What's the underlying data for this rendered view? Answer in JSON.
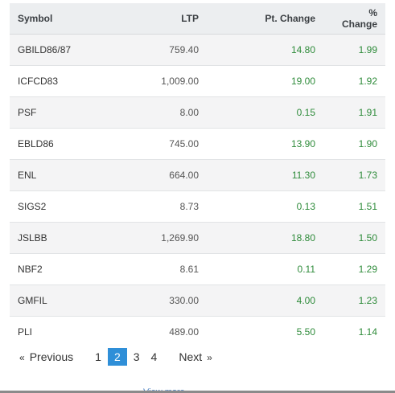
{
  "table": {
    "headers": {
      "symbol": "Symbol",
      "ltp": "LTP",
      "pt_change": "Pt. Change",
      "pct_change": "% Change"
    },
    "rows": [
      {
        "symbol": "GBILD86/87",
        "ltp": "759.40",
        "pt_change": "14.80",
        "pct_change": "1.99"
      },
      {
        "symbol": "ICFCD83",
        "ltp": "1,009.00",
        "pt_change": "19.00",
        "pct_change": "1.92"
      },
      {
        "symbol": "PSF",
        "ltp": "8.00",
        "pt_change": "0.15",
        "pct_change": "1.91"
      },
      {
        "symbol": "EBLD86",
        "ltp": "745.00",
        "pt_change": "13.90",
        "pct_change": "1.90"
      },
      {
        "symbol": "ENL",
        "ltp": "664.00",
        "pt_change": "11.30",
        "pct_change": "1.73"
      },
      {
        "symbol": "SIGS2",
        "ltp": "8.73",
        "pt_change": "0.13",
        "pct_change": "1.51"
      },
      {
        "symbol": "JSLBB",
        "ltp": "1,269.90",
        "pt_change": "18.80",
        "pct_change": "1.50"
      },
      {
        "symbol": "NBF2",
        "ltp": "8.61",
        "pt_change": "0.11",
        "pct_change": "1.29"
      },
      {
        "symbol": "GMFIL",
        "ltp": "330.00",
        "pt_change": "4.00",
        "pct_change": "1.23"
      },
      {
        "symbol": "PLI",
        "ltp": "489.00",
        "pt_change": "5.50",
        "pct_change": "1.14"
      }
    ]
  },
  "pagination": {
    "prev_arrow": "«",
    "prev_label": "Previous",
    "pages": [
      "1",
      "2",
      "3",
      "4"
    ],
    "active_page": "2",
    "next_label": "Next",
    "next_arrow": "»"
  },
  "footer": {
    "view_more_label": "View more"
  },
  "colors": {
    "positive": "#2e8b3a",
    "active_page_bg": "#2f8fd8",
    "header_bg": "#eceef0"
  }
}
